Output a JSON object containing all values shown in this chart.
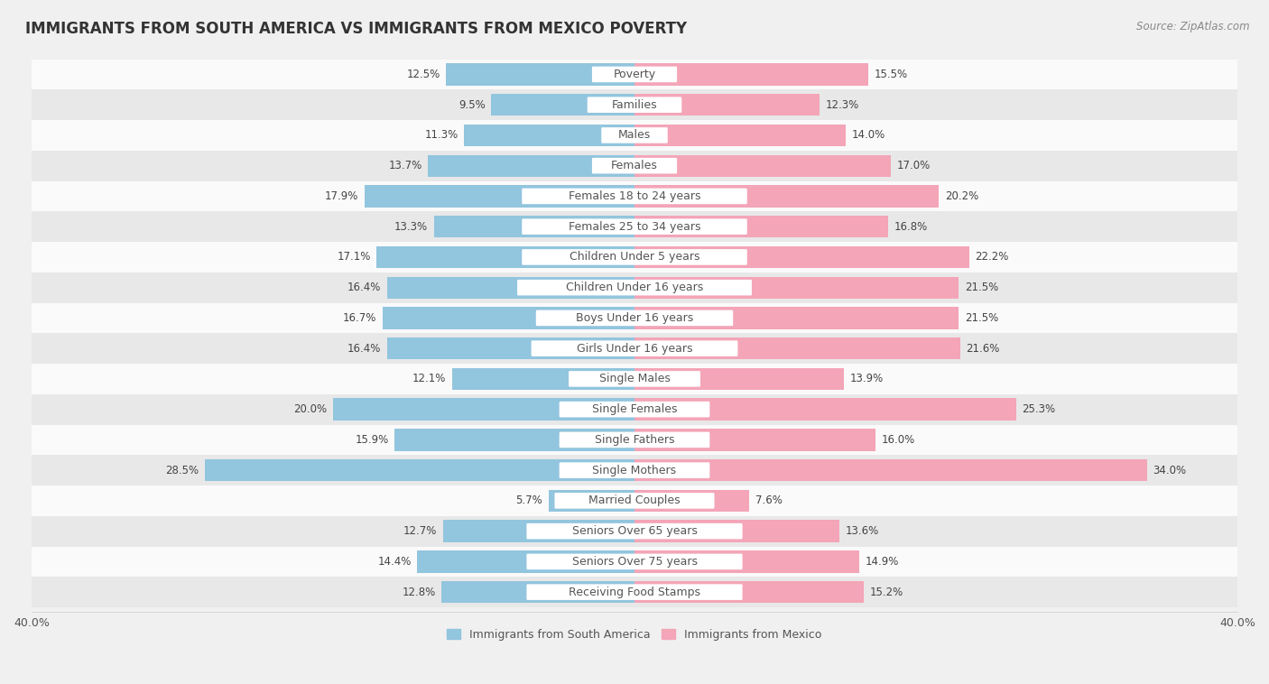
{
  "title": "IMMIGRANTS FROM SOUTH AMERICA VS IMMIGRANTS FROM MEXICO POVERTY",
  "source": "Source: ZipAtlas.com",
  "categories": [
    "Poverty",
    "Families",
    "Males",
    "Females",
    "Females 18 to 24 years",
    "Females 25 to 34 years",
    "Children Under 5 years",
    "Children Under 16 years",
    "Boys Under 16 years",
    "Girls Under 16 years",
    "Single Males",
    "Single Females",
    "Single Fathers",
    "Single Mothers",
    "Married Couples",
    "Seniors Over 65 years",
    "Seniors Over 75 years",
    "Receiving Food Stamps"
  ],
  "south_america": [
    12.5,
    9.5,
    11.3,
    13.7,
    17.9,
    13.3,
    17.1,
    16.4,
    16.7,
    16.4,
    12.1,
    20.0,
    15.9,
    28.5,
    5.7,
    12.7,
    14.4,
    12.8
  ],
  "mexico": [
    15.5,
    12.3,
    14.0,
    17.0,
    20.2,
    16.8,
    22.2,
    21.5,
    21.5,
    21.6,
    13.9,
    25.3,
    16.0,
    34.0,
    7.6,
    13.6,
    14.9,
    15.2
  ],
  "color_south_america": "#92C5DE",
  "color_mexico": "#F4A5B8",
  "background_color": "#f0f0f0",
  "row_color_even": "#fafafa",
  "row_color_odd": "#e8e8e8",
  "title_fontsize": 12,
  "source_fontsize": 8.5,
  "label_fontsize": 9,
  "value_fontsize": 8.5,
  "legend_fontsize": 9,
  "axis_max": 40.0
}
